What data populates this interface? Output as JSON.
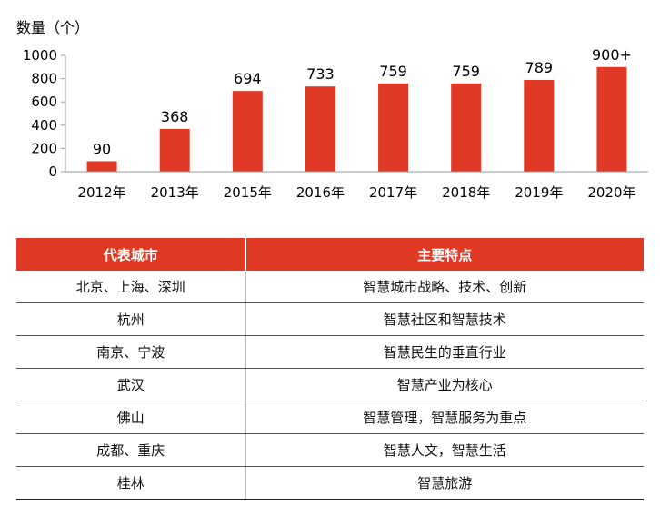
{
  "chart_data": {
    "type": "bar",
    "ylabel": "数量（个）",
    "categories": [
      "2012年",
      "2013年",
      "2015年",
      "2016年",
      "2017年",
      "2018年",
      "2019年",
      "2020年"
    ],
    "values": [
      90,
      368,
      694,
      733,
      759,
      759,
      789,
      900
    ],
    "data_labels": [
      "90",
      "368",
      "694",
      "733",
      "759",
      "759",
      "789",
      "900+"
    ],
    "ylim": [
      0,
      1000
    ],
    "yticks": [
      0,
      200,
      400,
      600,
      800,
      1000
    ],
    "bar_color": "#e03a26",
    "grid": false
  },
  "table": {
    "headers": [
      "代表城市",
      "主要特点"
    ],
    "rows": [
      [
        "北京、上海、深圳",
        "智慧城市战略、技术、创新"
      ],
      [
        "杭州",
        "智慧社区和智慧技术"
      ],
      [
        "南京、宁波",
        "智慧民生的垂直行业"
      ],
      [
        "武汉",
        "智慧产业为核心"
      ],
      [
        "佛山",
        "智慧管理，智慧服务为重点"
      ],
      [
        "成都、重庆",
        "智慧人文，智慧生活"
      ],
      [
        "桂林",
        "智慧旅游"
      ]
    ],
    "header_color": "#e03a26"
  }
}
